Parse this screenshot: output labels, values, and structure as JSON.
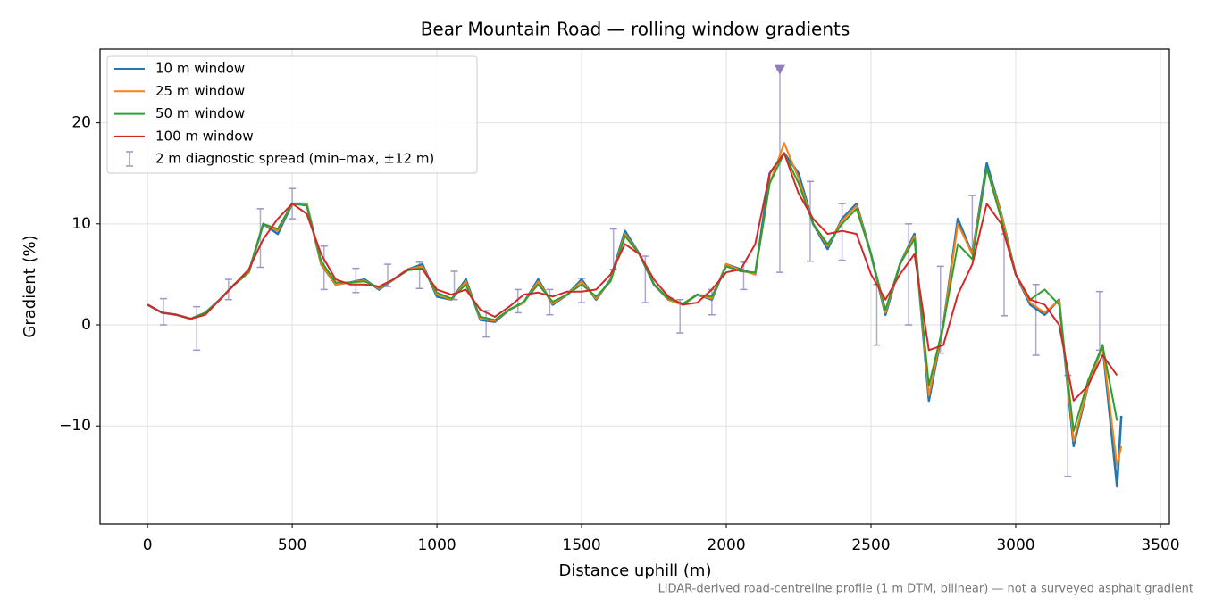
{
  "chart_data": {
    "type": "line",
    "title": "Bear Mountain Road — rolling window gradients",
    "x_label": "Distance uphill (m)",
    "y_label": "Gradient (%)",
    "footnote": "LiDAR-derived road-centreline profile (1 m DTM, bilinear) — not a surveyed asphalt gradient",
    "xlim": [
      -164,
      3531
    ],
    "ylim": [
      -19.7,
      27.3
    ],
    "xticks": [
      0,
      500,
      1000,
      1500,
      2000,
      2500,
      3000,
      3500
    ],
    "yticks": [
      {
        "value": -10,
        "label": "−10"
      },
      0,
      10,
      20
    ],
    "grid": true,
    "legend": "upper left",
    "x": [
      0,
      50,
      100,
      150,
      200,
      250,
      300,
      350,
      400,
      450,
      500,
      550,
      600,
      650,
      700,
      750,
      800,
      850,
      900,
      950,
      1000,
      1050,
      1100,
      1150,
      1200,
      1250,
      1300,
      1350,
      1400,
      1450,
      1500,
      1550,
      1600,
      1650,
      1700,
      1750,
      1800,
      1850,
      1900,
      1950,
      2000,
      2050,
      2100,
      2150,
      2200,
      2250,
      2300,
      2350,
      2400,
      2450,
      2500,
      2550,
      2600,
      2650,
      2700,
      2750,
      2800,
      2850,
      2900,
      2950,
      3000,
      3050,
      3100,
      3150,
      3200,
      3250,
      3300,
      3350,
      3365
    ],
    "series": [
      {
        "name": "10 m window",
        "color": "#1f77b4",
        "values": [
          2,
          1.2,
          1.0,
          0.6,
          1.2,
          2.5,
          4,
          5.2,
          10,
          9,
          12,
          12,
          6,
          4,
          4.2,
          4.5,
          3.5,
          4.5,
          5.5,
          6,
          2.8,
          2.5,
          4.5,
          0.5,
          0.3,
          1.5,
          2.2,
          4.5,
          2,
          3,
          4.5,
          2.5,
          4.5,
          9.3,
          7,
          4,
          2.5,
          2,
          3,
          2.5,
          6,
          5.5,
          5,
          15,
          17,
          15,
          10,
          7.5,
          10.5,
          12,
          7,
          1,
          6,
          9,
          -7.5,
          0,
          10.5,
          7,
          16,
          11,
          5,
          2,
          1,
          2.5,
          -12,
          -6,
          -2,
          -16,
          -9
        ]
      },
      {
        "name": "25 m window",
        "color": "#ff7f0e",
        "values": [
          2,
          1.2,
          1.0,
          0.6,
          1.2,
          2.5,
          4,
          5.2,
          10,
          9.3,
          12,
          12,
          6,
          4,
          4.2,
          4.4,
          3.6,
          4.5,
          5.5,
          5.8,
          3,
          2.5,
          4.3,
          0.6,
          0.4,
          1.5,
          2.2,
          4.3,
          2.1,
          3,
          4.3,
          2.6,
          4.4,
          9,
          7,
          4,
          2.5,
          2,
          3,
          2.6,
          6,
          5.4,
          5,
          14,
          18,
          14.5,
          10,
          7.8,
          10.3,
          11.8,
          7,
          1.2,
          6,
          8.8,
          -7,
          0,
          10,
          7,
          15.5,
          11,
          5,
          2.2,
          1.2,
          2.4,
          -11.5,
          -6,
          -2,
          -14,
          -12
        ]
      },
      {
        "name": "50 m window",
        "color": "#2ca02c",
        "values": [
          2,
          1.2,
          1.0,
          0.6,
          1.2,
          2.5,
          4,
          5.3,
          10,
          9.5,
          12,
          11.8,
          6.3,
          4.2,
          4.2,
          4.3,
          3.7,
          4.5,
          5.4,
          5.6,
          3.2,
          2.6,
          4,
          0.8,
          0.5,
          1.5,
          2.3,
          4,
          2.3,
          3,
          4,
          2.8,
          4.3,
          8.8,
          7,
          4,
          2.6,
          2.1,
          3,
          2.8,
          5.8,
          5.3,
          5.2,
          14,
          17,
          14,
          10,
          8,
          10,
          11.5,
          7,
          1.5,
          6,
          8.5,
          -6,
          0,
          8,
          6.5,
          15.5,
          10.5,
          5,
          2.5,
          3.5,
          2,
          -10.5,
          -5.5,
          -2,
          -9.5,
          null
        ]
      },
      {
        "name": "100 m window",
        "color": "#d62728",
        "values": [
          2,
          1.2,
          1,
          0.6,
          1,
          2.5,
          4,
          5.5,
          8.5,
          10.5,
          12,
          11,
          7,
          4.5,
          4,
          4,
          3.8,
          4.5,
          5.5,
          5.5,
          3.5,
          3,
          3.5,
          1.5,
          0.8,
          1.8,
          3,
          3.2,
          2.8,
          3.3,
          3.3,
          3.5,
          5,
          8,
          7,
          4.5,
          2.8,
          2,
          2.2,
          3.5,
          5.2,
          5.5,
          8,
          15,
          17,
          13,
          10.5,
          9,
          9.3,
          9,
          5,
          2.5,
          5,
          7,
          -2.5,
          -2,
          3,
          6,
          12,
          10,
          5,
          2.5,
          2,
          0,
          -7.5,
          -6,
          -3,
          -5,
          null
        ]
      }
    ],
    "spread": {
      "name": "2 m diagnostic spread (min–max, ±12 m)",
      "color": "#9e93c4",
      "x": [
        55,
        170,
        280,
        390,
        500,
        610,
        720,
        830,
        940,
        1060,
        1170,
        1280,
        1390,
        1500,
        1610,
        1720,
        1840,
        1950,
        2060,
        2185,
        2290,
        2400,
        2520,
        2630,
        2740,
        2850,
        2960,
        3070,
        3180,
        3290
      ],
      "low": [
        0,
        -2.5,
        2.5,
        5.7,
        10.5,
        3.5,
        3.2,
        3.8,
        3.6,
        2.5,
        -1.2,
        1.2,
        1,
        2.2,
        5.5,
        2.2,
        -0.8,
        1,
        3.5,
        5.2,
        6.3,
        6.4,
        -2,
        0,
        -2.8,
        7.5,
        0.9,
        -3,
        -15,
        -2.5
      ],
      "high": [
        2.6,
        1.8,
        4.5,
        11.5,
        13.5,
        7.8,
        5.6,
        6,
        6.2,
        5.3,
        1.4,
        3.5,
        3.5,
        4.6,
        9.5,
        6.8,
        2.5,
        3.5,
        6.2,
        25.3,
        14.2,
        12,
        4,
        10,
        5.8,
        12.8,
        9,
        4,
        -5,
        3.3
      ]
    },
    "clip_marker": {
      "x": 2185,
      "y": 25.3,
      "color": "#8e7fb8"
    }
  }
}
